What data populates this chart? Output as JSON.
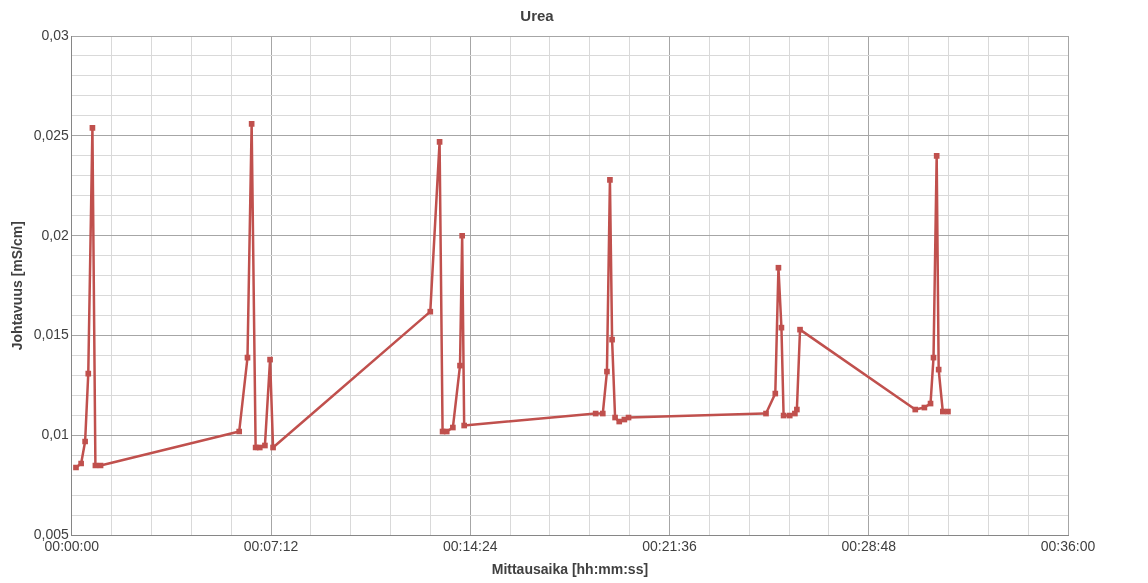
{
  "chart_data": {
    "type": "line",
    "title": "Urea",
    "xlabel": "Mittausaika [hh:mm:ss]",
    "ylabel": "Johtavuus [mS/cm]",
    "x": [
      0.0025,
      0.0056,
      0.008,
      0.0099,
      0.0124,
      0.0142,
      0.0173,
      0.1008,
      0.1058,
      0.1083,
      0.1107,
      0.1132,
      0.1163,
      0.1194,
      0.1212,
      0.2159,
      0.2215,
      0.2233,
      0.2258,
      0.2295,
      0.2338,
      0.2351,
      0.2363,
      0.3155,
      0.3198,
      0.3223,
      0.3241,
      0.3254,
      0.3272,
      0.3297,
      0.3328,
      0.3353,
      0.4181,
      0.4237,
      0.4256,
      0.4274,
      0.4287,
      0.4324,
      0.4355,
      0.4367,
      0.4386,
      0.508,
      0.5135,
      0.5172,
      0.519,
      0.5209,
      0.5221,
      0.5246,
      0.5277
    ],
    "series": [
      {
        "color": "#c0504d",
        "values": [
          0.0084,
          0.0086,
          0.0097,
          0.0131,
          0.0254,
          0.0085,
          0.0085,
          0.0102,
          0.0139,
          0.0256,
          0.0094,
          0.0094,
          0.0095,
          0.0138,
          0.0094,
          0.0162,
          0.0247,
          0.0102,
          0.0102,
          0.0104,
          0.0135,
          0.02,
          0.0105,
          0.0111,
          0.0111,
          0.0132,
          0.0228,
          0.0148,
          0.0109,
          0.0107,
          0.0108,
          0.0109,
          0.0111,
          0.0121,
          0.0184,
          0.0154,
          0.011,
          0.011,
          0.0111,
          0.0113,
          0.0153,
          0.0113,
          0.0114,
          0.0116,
          0.0139,
          0.024,
          0.0133,
          0.0112,
          0.0112
        ]
      }
    ],
    "xlim": [
      0,
      0.6
    ],
    "xticks": [
      {
        "value": 0,
        "label": "00:00:00"
      },
      {
        "value": 0.024,
        "label": null
      },
      {
        "value": 0.048,
        "label": null
      },
      {
        "value": 0.072,
        "label": null
      },
      {
        "value": 0.096,
        "label": null
      },
      {
        "value": 0.12,
        "label": "00:07:12"
      },
      {
        "value": 0.144,
        "label": null
      },
      {
        "value": 0.168,
        "label": null
      },
      {
        "value": 0.192,
        "label": null
      },
      {
        "value": 0.216,
        "label": null
      },
      {
        "value": 0.24,
        "label": "00:14:24"
      },
      {
        "value": 0.264,
        "label": null
      },
      {
        "value": 0.288,
        "label": null
      },
      {
        "value": 0.312,
        "label": null
      },
      {
        "value": 0.336,
        "label": null
      },
      {
        "value": 0.36,
        "label": "00:21:36"
      },
      {
        "value": 0.384,
        "label": null
      },
      {
        "value": 0.408,
        "label": null
      },
      {
        "value": 0.432,
        "label": null
      },
      {
        "value": 0.456,
        "label": null
      },
      {
        "value": 0.48,
        "label": "00:28:48"
      },
      {
        "value": 0.504,
        "label": null
      },
      {
        "value": 0.528,
        "label": null
      },
      {
        "value": 0.552,
        "label": null
      },
      {
        "value": 0.576,
        "label": null
      },
      {
        "value": 0.6,
        "label": "00:36:00"
      }
    ],
    "ylim": [
      0.005,
      0.03
    ],
    "yticks": [
      {
        "value": 0.005,
        "label": "0,005"
      },
      {
        "value": 0.006,
        "label": null
      },
      {
        "value": 0.007,
        "label": null
      },
      {
        "value": 0.008,
        "label": null
      },
      {
        "value": 0.009,
        "label": null
      },
      {
        "value": 0.01,
        "label": "0,01"
      },
      {
        "value": 0.011,
        "label": null
      },
      {
        "value": 0.012,
        "label": null
      },
      {
        "value": 0.013,
        "label": null
      },
      {
        "value": 0.014,
        "label": null
      },
      {
        "value": 0.015,
        "label": "0,015"
      },
      {
        "value": 0.016,
        "label": null
      },
      {
        "value": 0.017,
        "label": null
      },
      {
        "value": 0.018,
        "label": null
      },
      {
        "value": 0.019,
        "label": null
      },
      {
        "value": 0.02,
        "label": "0,02"
      },
      {
        "value": 0.021,
        "label": null
      },
      {
        "value": 0.022,
        "label": null
      },
      {
        "value": 0.023,
        "label": null
      },
      {
        "value": 0.024,
        "label": null
      },
      {
        "value": 0.025,
        "label": "0,025"
      },
      {
        "value": 0.026,
        "label": null
      },
      {
        "value": 0.027,
        "label": null
      },
      {
        "value": 0.028,
        "label": null
      },
      {
        "value": 0.029,
        "label": null
      },
      {
        "value": 0.03,
        "label": "0,03"
      }
    ],
    "grid": true,
    "legend": false,
    "marker": "square",
    "line_style": "solid"
  }
}
